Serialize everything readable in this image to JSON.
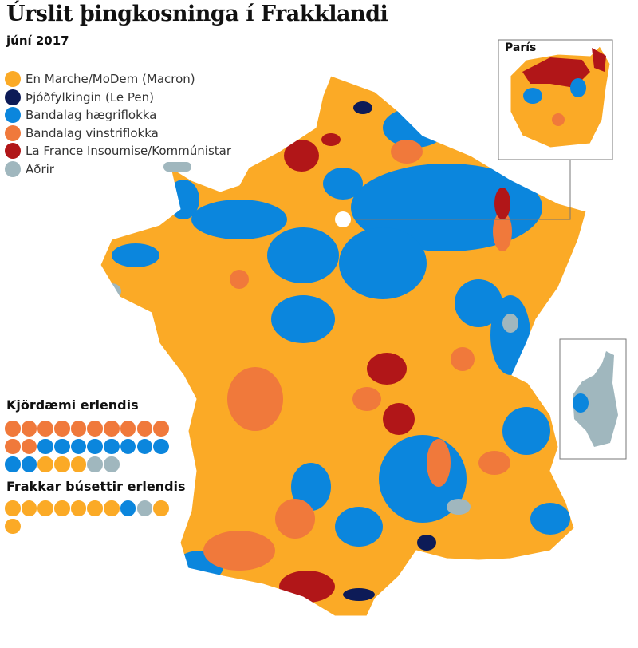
{
  "title": "Úrslit þingkosninga í Frakklandi",
  "subtitle": "júní 2017",
  "legend": [
    {
      "key": "macron",
      "label": "En Marche/MoDem (Macron)",
      "color": "#FBAA26"
    },
    {
      "key": "lepen",
      "label": "Þjóðfylkingin (Le Pen)",
      "color": "#0D1B57"
    },
    {
      "key": "right",
      "label": "Bandalag hægriflokka",
      "color": "#0B86DD"
    },
    {
      "key": "left",
      "label": "Bandalag vinstriflokka",
      "color": "#F0793B"
    },
    {
      "key": "lfi",
      "label": "La France Insoumise/Kommúnistar",
      "color": "#B11618"
    },
    {
      "key": "other",
      "label": "Aðrir",
      "color": "#A0B7BE"
    }
  ],
  "abroad_constituencies": {
    "title": "Kjördæmi erlendis",
    "seats": [
      "left",
      "left",
      "left",
      "left",
      "left",
      "left",
      "left",
      "left",
      "left",
      "left",
      "left",
      "left",
      "right",
      "right",
      "right",
      "right",
      "right",
      "right",
      "right",
      "right",
      "right",
      "right",
      "macron",
      "macron",
      "macron",
      "other",
      "other"
    ]
  },
  "french_abroad": {
    "title": "Frakkar búsettir erlendis",
    "seats": [
      "macron",
      "macron",
      "macron",
      "macron",
      "macron",
      "macron",
      "macron",
      "right",
      "other",
      "macron",
      "macron"
    ]
  },
  "insets": {
    "paris": "París"
  }
}
